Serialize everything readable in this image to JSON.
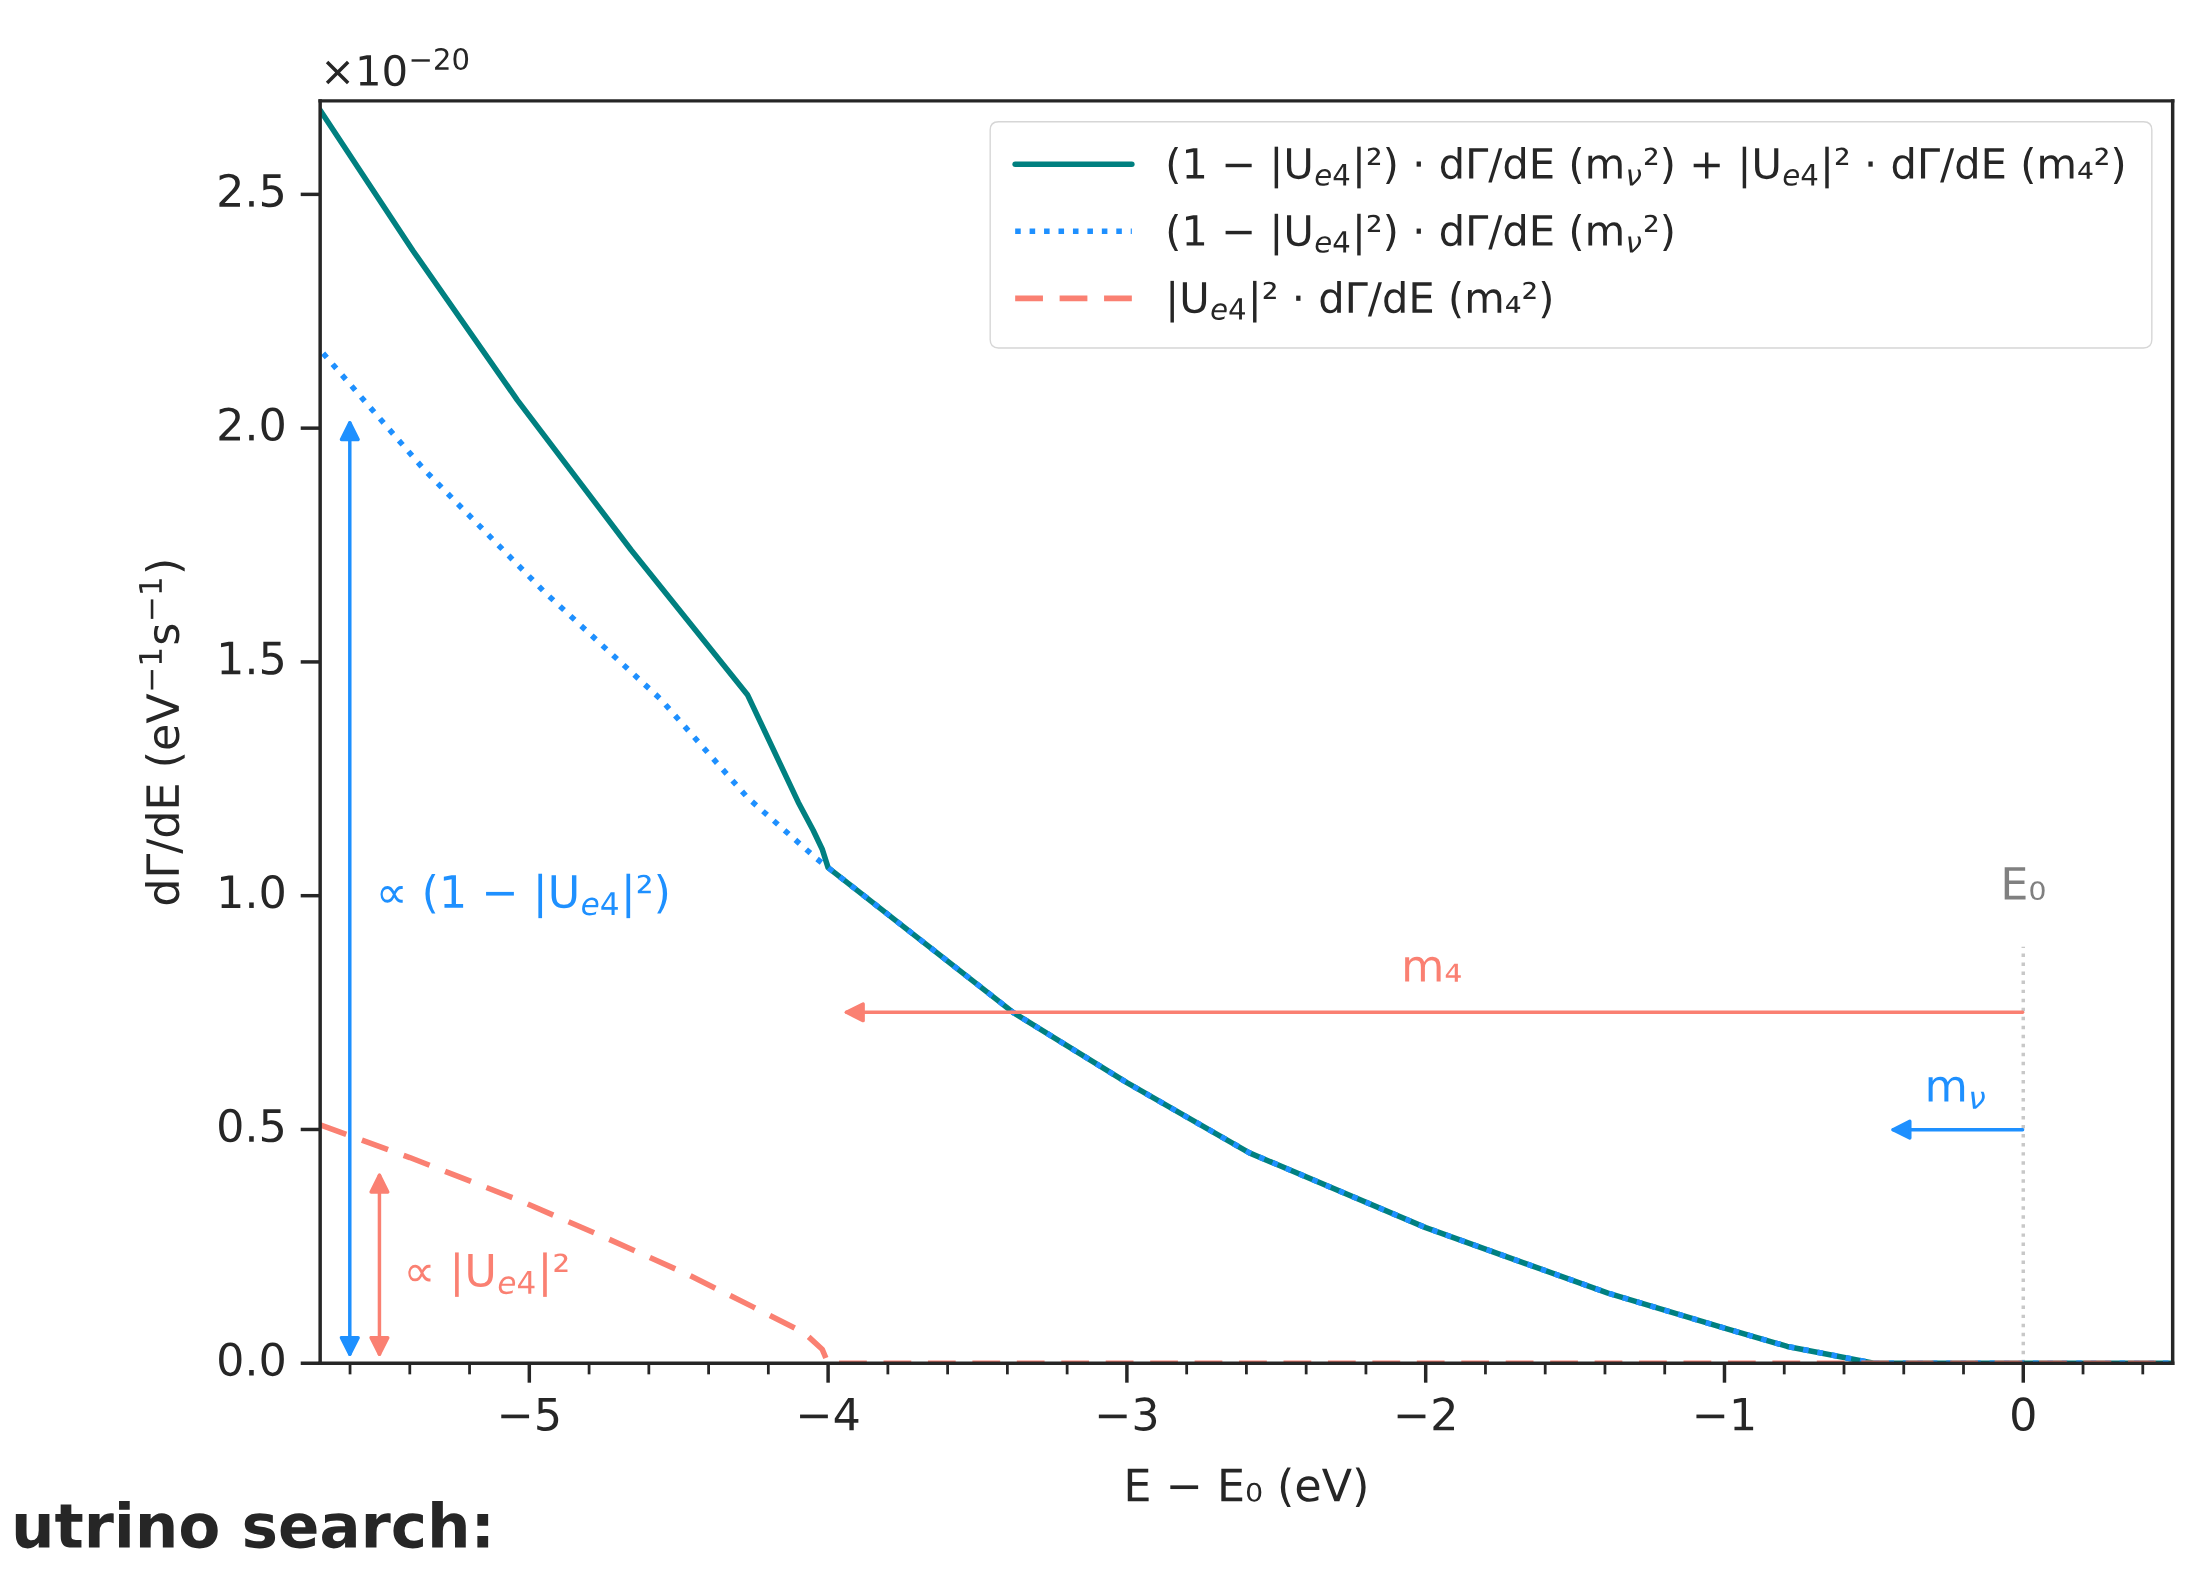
{
  "chart_data": {
    "type": "line",
    "xlabel": "E − E₀ (eV)",
    "ylabel": "dΓ/dE (eV$^{−1}$s$^{−1}$)",
    "xlim": [
      -5.7,
      0.5
    ],
    "xticks": [
      {
        "value": -5,
        "label": "−5"
      },
      {
        "value": -4,
        "label": "−4"
      },
      {
        "value": -3,
        "label": "−3"
      },
      {
        "value": -2,
        "label": "−2"
      },
      {
        "value": -1,
        "label": "−1"
      },
      0
    ],
    "ylim": [
      0,
      2.7
    ],
    "yticks": [
      {
        "value": 0,
        "label": "0.0"
      },
      0.5,
      {
        "value": 1,
        "label": "1.0"
      },
      1.5,
      {
        "value": 2,
        "label": "2.0"
      },
      2.5
    ],
    "legend": "top right",
    "grid": false,
    "series": [
      {
        "name": "(1 − |U$_{e4}$|²) · dΓ/dE (m$_{ν}$²) + |U$_{e4}$|² · dΓ/dE (m₄²)",
        "color": "#008080",
        "line_style": "solid",
        "x": [
          -5.7,
          -5.39,
          -5.04,
          -4.66,
          -4.27,
          -4.1,
          -4.05,
          -4.02,
          -4.0,
          -3.38,
          -3.0,
          -2.59,
          -2.0,
          -1.39,
          -1.0,
          -0.79,
          -0.5,
          0.5
        ],
        "values": [
          2.68,
          2.38,
          2.06,
          1.74,
          1.43,
          1.2,
          1.14,
          1.1,
          1.06,
          0.75,
          0.6,
          0.45,
          0.29,
          0.15,
          0.075,
          0.036,
          0,
          0
        ]
      },
      {
        "name": "(1 − |U$_{e4}$|²) · dΓ/dE (m$_{ν}$²)",
        "color": "#1e90ff",
        "line_style": "dotted",
        "x": [
          -5.69,
          -5.35,
          -4.95,
          -4.56,
          -4.27,
          -4.04,
          -4.0,
          -3.38,
          -3.0,
          -2.59,
          -2.0,
          -1.39,
          -1.0,
          -0.79,
          -0.5,
          0.5
        ],
        "values": [
          2.16,
          1.91,
          1.65,
          1.42,
          1.21,
          1.08,
          1.06,
          0.75,
          0.6,
          0.45,
          0.29,
          0.15,
          0.075,
          0.036,
          0,
          0
        ]
      },
      {
        "name": "|U$_{e4}$|² · dΓ/dE (m₄²)",
        "color": "#fa8072",
        "line_style": "dashed",
        "x": [
          -5.7,
          -5.4,
          -5.04,
          -4.75,
          -4.47,
          -4.25,
          -4.08,
          -4.02,
          -4.0,
          0.5
        ],
        "values": [
          0.51,
          0.44,
          0.35,
          0.27,
          0.19,
          0.12,
          0.065,
          0.03,
          0,
          0
        ]
      }
    ],
    "ref_lines": [
      {
        "axis": "x",
        "value": 0,
        "label": "E₀",
        "color": "#c8c8c8",
        "line_style": "dotted"
      }
    ],
    "annotations": [
      "×10$^{−20}$",
      "∝ (1 − |U$_{e4}$|²)",
      "∝ |U$_{e4}$|²",
      "m₄",
      "m$_{ν}$",
      "utrino search:"
    ]
  }
}
